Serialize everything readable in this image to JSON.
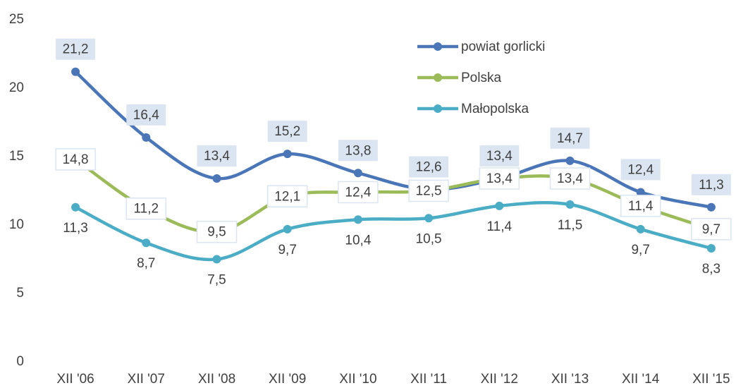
{
  "chart_data": {
    "type": "line",
    "categories": [
      "XII '06",
      "XII '07",
      "XII '08",
      "XII '09",
      "XII '10",
      "XII '11",
      "XII '12",
      "XII '13",
      "XII '14",
      "XII '15"
    ],
    "series": [
      {
        "name": "powiat gorlicki",
        "color": "#4a76b8",
        "values": [
          21.2,
          16.4,
          13.4,
          15.2,
          13.8,
          12.6,
          13.4,
          14.7,
          12.4,
          11.3
        ],
        "value_labels": [
          "21,2",
          "16,4",
          "13,4",
          "15,2",
          "13,8",
          "12,6",
          "13,4",
          "14,7",
          "12,4",
          "11,3"
        ]
      },
      {
        "name": "Polska",
        "color": "#9bbb59",
        "values": [
          14.8,
          11.2,
          9.5,
          12.1,
          12.4,
          12.5,
          13.4,
          13.4,
          11.4,
          9.7
        ],
        "value_labels": [
          "14,8",
          "11,2",
          "9,5",
          "12,1",
          "12,4",
          "12,5",
          "13,4",
          "13,4",
          "11,4",
          "9,7"
        ]
      },
      {
        "name": "Małopolska",
        "color": "#4bacc6",
        "values": [
          11.3,
          8.7,
          7.5,
          9.7,
          10.4,
          10.5,
          11.4,
          11.5,
          9.7,
          8.3
        ],
        "value_labels": [
          "11,3",
          "8,7",
          "7,5",
          "9,7",
          "10,4",
          "10,5",
          "11,4",
          "11,5",
          "9,7",
          "8,3"
        ]
      }
    ],
    "ylim": [
      0,
      25
    ],
    "yticks": [
      0,
      5,
      10,
      15,
      20,
      25
    ],
    "grid": false,
    "legend": "upper right"
  }
}
